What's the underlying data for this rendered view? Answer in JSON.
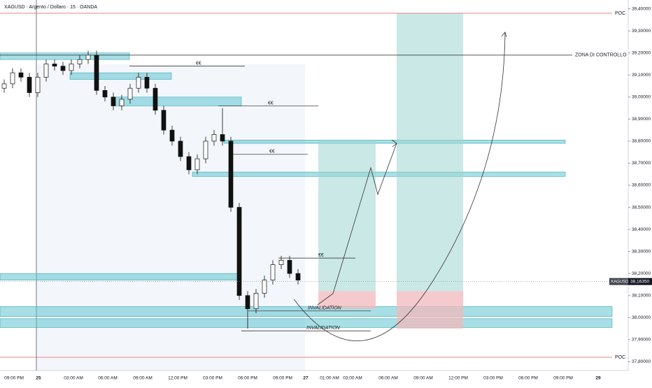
{
  "chart_data": {
    "type": "candlestick",
    "title": "XAGUSD · Argento / Dollaro · 15 · OANDA",
    "ylim": [
      37.76,
      39.44
    ],
    "yticks": [
      {
        "value": 39.4,
        "label": "39,40000"
      },
      {
        "value": 39.3,
        "label": "39,30000"
      },
      {
        "value": 39.2,
        "label": "39,20000"
      },
      {
        "value": 39.1,
        "label": "39,10000"
      },
      {
        "value": 39.0,
        "label": "39,00000"
      },
      {
        "value": 38.9,
        "label": "38,90000"
      },
      {
        "value": 38.8,
        "label": "38,80000"
      },
      {
        "value": 38.7,
        "label": "38,70000"
      },
      {
        "value": 38.6,
        "label": "38,60000"
      },
      {
        "value": 38.5,
        "label": "38,50000"
      },
      {
        "value": 38.4,
        "label": "38,40000"
      },
      {
        "value": 38.3,
        "label": "38,30000"
      },
      {
        "value": 38.2,
        "label": "38,20000"
      },
      {
        "value": 38.1,
        "label": "38,10000"
      },
      {
        "value": 38.0,
        "label": "38,00000"
      },
      {
        "value": 37.9,
        "label": "37,90000"
      },
      {
        "value": 37.8,
        "label": "37,80000"
      }
    ],
    "x_labels": [
      "09:00 PM",
      "25",
      "03:00 AM",
      "06:00 AM",
      "09:00 AM",
      "12:00 PM",
      "03:00 PM",
      "06:00 PM",
      "09:00 PM",
      "27",
      "01:00 AM",
      "03:00 AM",
      "06:00 AM",
      "09:00 AM",
      "12:00 PM",
      "03:00 PM",
      "06:00 PM",
      "09:00 PM",
      "29"
    ],
    "open": [
      39.04,
      39.06,
      39.11,
      39.09,
      39.02,
      39.09,
      39.15,
      39.14,
      39.12,
      39.15,
      39.17,
      39.19,
      39.03,
      39.0,
      38.96,
      38.99,
      39.04,
      39.09,
      39.04,
      38.94,
      38.85,
      38.8,
      38.73,
      38.67,
      38.72,
      38.8,
      38.83,
      38.8,
      38.5,
      38.1,
      38.04,
      38.11,
      38.17,
      38.24,
      38.26,
      38.2
    ],
    "high": [
      39.08,
      39.13,
      39.13,
      39.11,
      39.11,
      39.17,
      39.17,
      39.16,
      39.17,
      39.19,
      39.21,
      39.21,
      39.05,
      39.02,
      39.01,
      39.06,
      39.11,
      39.11,
      39.06,
      38.96,
      38.87,
      38.82,
      38.75,
      38.74,
      38.82,
      38.85,
      38.95,
      38.82,
      38.52,
      38.12,
      38.13,
      38.19,
      38.26,
      38.28,
      38.28,
      38.22
    ],
    "low": [
      39.02,
      39.04,
      39.07,
      39.0,
      39.0,
      39.07,
      39.12,
      39.1,
      39.1,
      39.13,
      39.15,
      39.01,
      38.98,
      38.94,
      38.94,
      38.97,
      39.02,
      39.02,
      38.92,
      38.83,
      38.78,
      38.71,
      38.65,
      38.65,
      38.7,
      38.78,
      38.78,
      38.48,
      38.08,
      37.95,
      38.02,
      38.09,
      38.15,
      38.22,
      38.18,
      38.15
    ],
    "close": [
      39.06,
      39.11,
      39.09,
      39.02,
      39.09,
      39.15,
      39.14,
      39.12,
      39.15,
      39.17,
      39.19,
      39.03,
      39.0,
      38.96,
      38.99,
      39.04,
      39.09,
      39.04,
      38.94,
      38.85,
      38.8,
      38.73,
      38.67,
      38.72,
      38.8,
      38.83,
      38.8,
      38.5,
      38.1,
      38.04,
      38.11,
      38.17,
      38.24,
      38.26,
      38.2,
      38.17
    ],
    "zones": [
      [
        39.17,
        39.2
      ],
      [
        39.08,
        39.11
      ],
      [
        38.96,
        39.0
      ],
      [
        38.79,
        38.805
      ],
      [
        38.64,
        38.66
      ],
      [
        38.17,
        38.2
      ],
      [
        38.005,
        38.05
      ],
      [
        37.955,
        37.995
      ]
    ],
    "levels": [
      {
        "label": "POC",
        "value": 39.38
      },
      {
        "label": "ZONA DI CONTROLLO",
        "value": 39.19
      },
      {
        "label": "POC",
        "value": 37.82
      }
    ],
    "annotations": [
      {
        "label": "€€",
        "value": 39.14
      },
      {
        "label": "€€",
        "value": 38.96
      },
      {
        "label": "€€",
        "value": 38.74
      },
      {
        "label": "€€",
        "value": 38.27
      },
      {
        "label": "INVALIDATION",
        "value": 38.03
      },
      {
        "label": "INVALIDATION",
        "value": 37.94
      }
    ],
    "positions": [
      {
        "entry": 38.12,
        "target": 38.8,
        "stop": 38.04
      },
      {
        "entry": 38.12,
        "target": 39.38,
        "stop": 37.95
      }
    ],
    "symbol_label": "XAGUSD",
    "last_price": {
      "value": 38.1635,
      "label": "38,16350"
    }
  }
}
